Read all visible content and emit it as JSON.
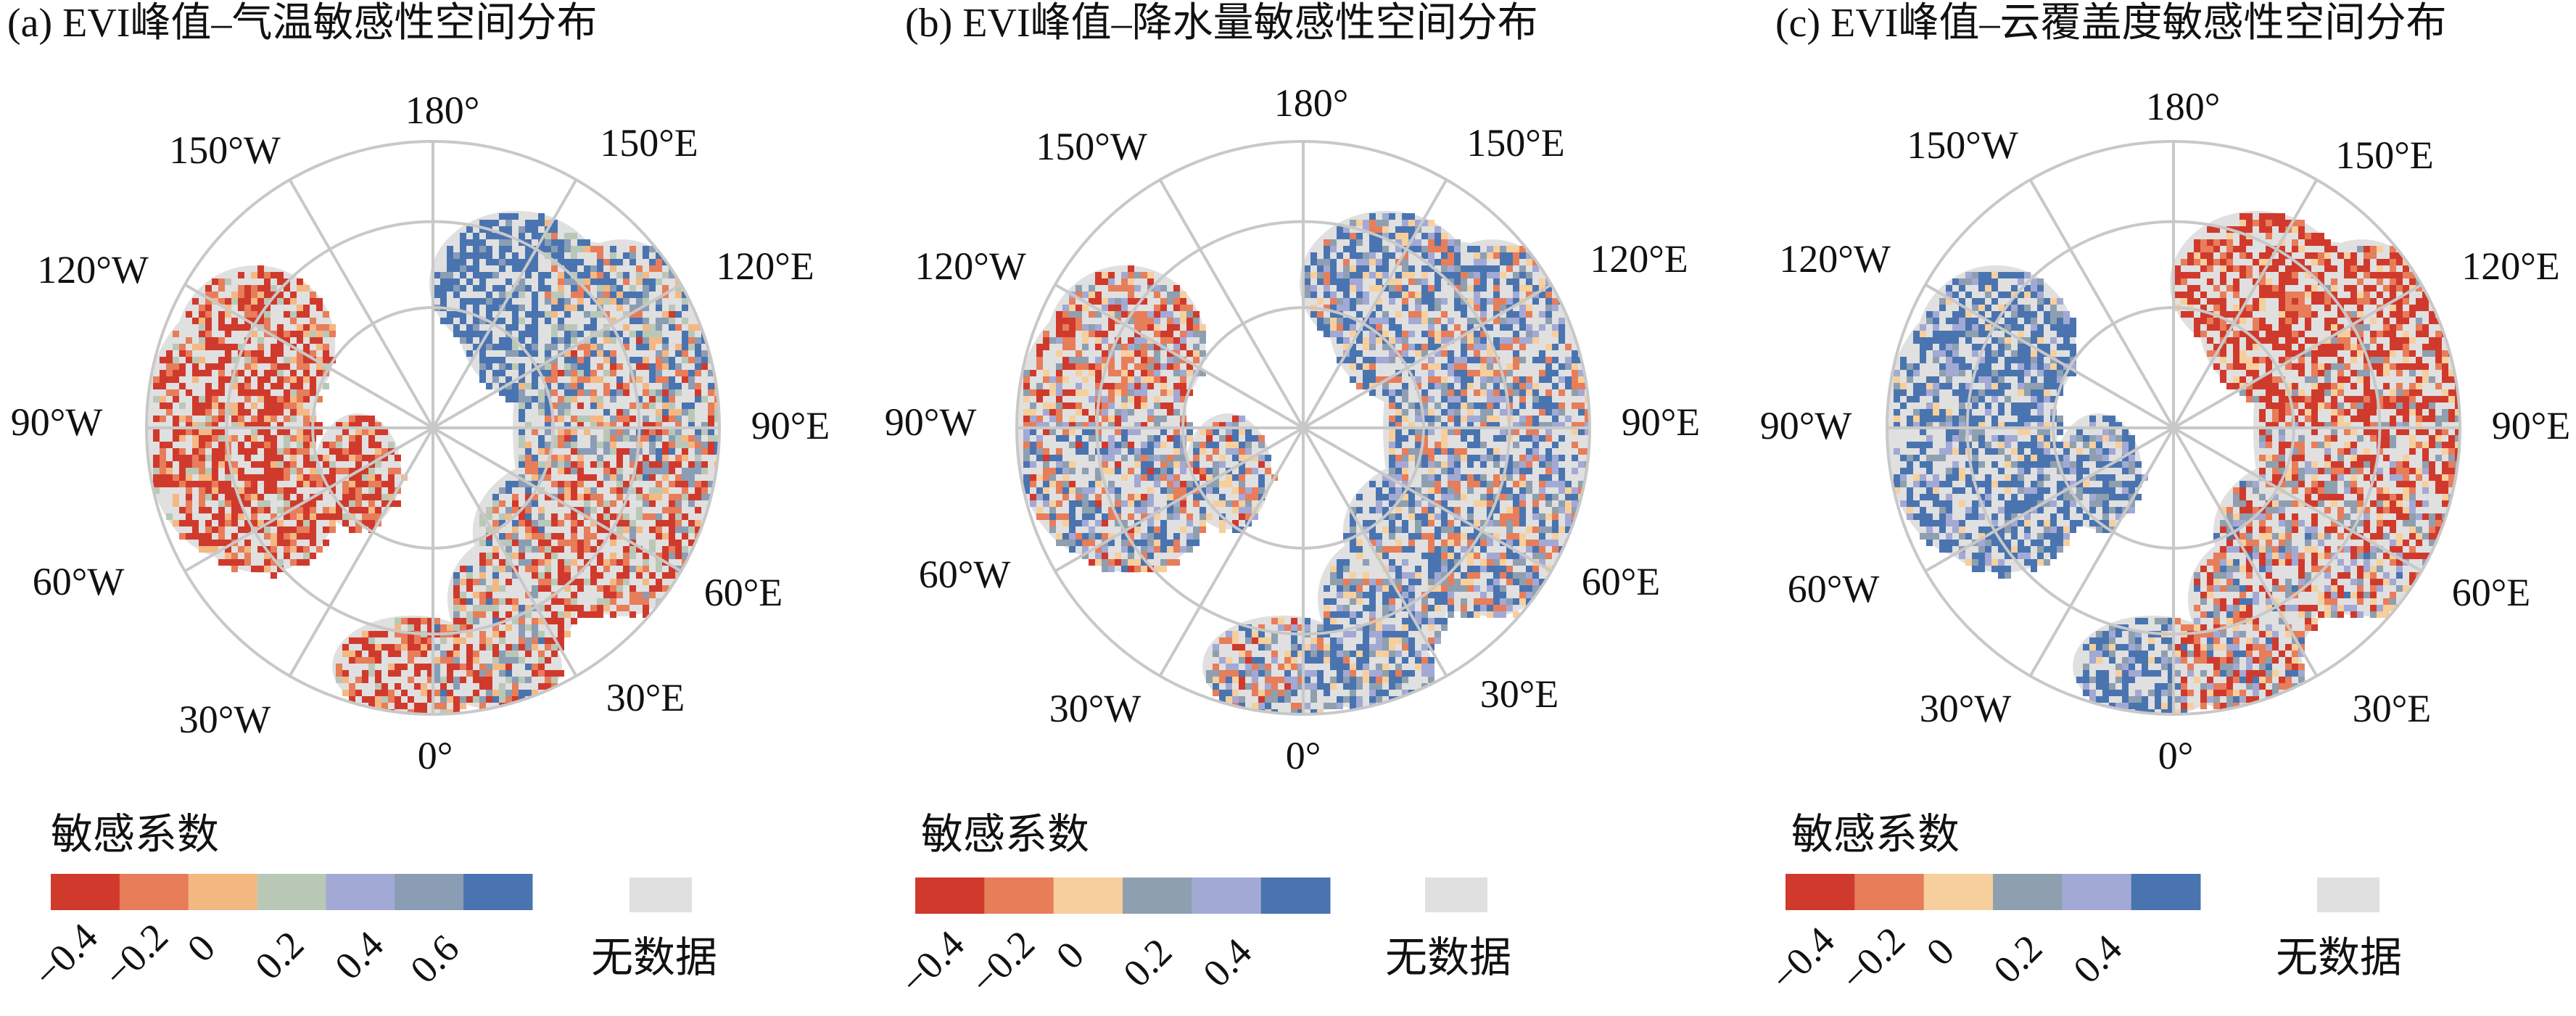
{
  "panels": [
    {
      "title": "(a) EVI峰值–气温敏感性空间分布",
      "pattern": "temperature",
      "lon_labels": [
        "180°",
        "150°E",
        "120°E",
        "90°E",
        "60°E",
        "30°E",
        "0°",
        "30°W",
        "60°W",
        "90°W",
        "120°W",
        "150°W"
      ],
      "legend_title": "敏感系数",
      "legend_colors": [
        "#d03a2c",
        "#e87d5a",
        "#f4b882",
        "#b9c8b6",
        "#a3a9d5",
        "#8a9db5",
        "#4a74b0"
      ],
      "legend_ticks": [
        "−0.4",
        "−0.2",
        "0",
        "0.2",
        "0.4",
        "0.6"
      ],
      "nodata_label": "无数据"
    },
    {
      "title": "(b) EVI峰值–降水量敏感性空间分布",
      "pattern": "precipitation",
      "lon_labels": [
        "180°",
        "150°E",
        "120°E",
        "90°E",
        "60°E",
        "30°E",
        "0°",
        "30°W",
        "60°W",
        "90°W",
        "120°W",
        "150°W"
      ],
      "legend_title": "敏感系数",
      "legend_colors": [
        "#d03a2c",
        "#e87d5a",
        "#f6cf9c",
        "#8e9fb0",
        "#a3a9d5",
        "#4a74b0"
      ],
      "legend_ticks": [
        "−0.4",
        "−0.2",
        "0",
        "0.2",
        "0.4"
      ],
      "nodata_label": "无数据"
    },
    {
      "title": "(c) EVI峰值–云覆盖度敏感性空间分布",
      "pattern": "cloud",
      "lon_labels": [
        "180°",
        "150°E",
        "120°E",
        "90°E",
        "60°E",
        "30°E",
        "0°",
        "30°W",
        "60°W",
        "90°W",
        "120°W",
        "150°W"
      ],
      "legend_title": "敏感系数",
      "legend_colors": [
        "#d03a2c",
        "#e87d5a",
        "#f6cf9c",
        "#8e9fb0",
        "#a3a9d5",
        "#4a74b0"
      ],
      "legend_ticks": [
        "−0.4",
        "−0.2",
        "0",
        "0.2",
        "0.4"
      ],
      "nodata_label": "无数据"
    }
  ],
  "colors": {
    "nodata": "#e0e0e0",
    "grid": "#c8c8c8",
    "land": "#dddddd"
  }
}
